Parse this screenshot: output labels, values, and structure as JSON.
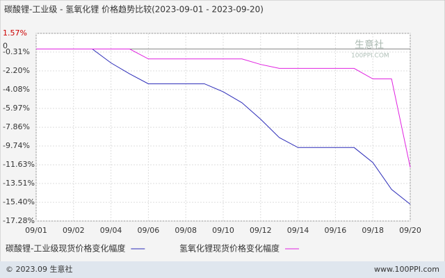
{
  "chart_data": {
    "type": "line",
    "title": "碳酸锂-工业级 - 氢氧化锂 价格趋势比较(2023-09-01 - 2023-09-20)",
    "categories": [
      "09/01",
      null,
      "09/02",
      null,
      "09/04",
      null,
      "09/06",
      null,
      "09/08",
      null,
      "09/10",
      null,
      "09/12",
      null,
      "09/14",
      null,
      "09/16",
      null,
      "09/18",
      null,
      "09/20"
    ],
    "series": [
      {
        "name": "碳酸锂-工业级现货价格变化幅度",
        "color": "#2a2ab8",
        "values": [
          0,
          0,
          0,
          0,
          -1.4,
          -2.5,
          -3.5,
          -3.5,
          -3.5,
          -3.5,
          -4.3,
          -5.4,
          -7.05,
          -8.9,
          -9.9,
          -9.9,
          -9.9,
          -9.9,
          -11.4,
          -14.1,
          -15.6
        ]
      },
      {
        "name": "氢氧化锂现货价格变化幅度",
        "color": "#e020e0",
        "values": [
          0,
          0,
          0,
          0,
          0,
          0,
          -1.0,
          -1.0,
          -1.0,
          -1.0,
          -1.0,
          -1.0,
          -1.55,
          -1.95,
          -1.95,
          -1.95,
          -1.95,
          -1.95,
          -3.0,
          -3.0,
          -11.9
        ]
      }
    ],
    "ylim": [
      -17.28,
      1.57
    ],
    "yticks": [
      {
        "value": 1.57,
        "label": "1.57%"
      },
      0,
      {
        "value": -0.31,
        "label": "-0.31%"
      },
      {
        "value": -2.2,
        "label": "-2.20%"
      },
      {
        "value": -4.08,
        "label": "-4.08%"
      },
      {
        "value": -5.97,
        "label": "-5.97%"
      },
      {
        "value": -7.86,
        "label": "-7.86%"
      },
      {
        "value": -9.74,
        "label": "-9.74%"
      },
      {
        "value": -11.63,
        "label": "-11.63%"
      },
      {
        "value": -13.51,
        "label": "-13.51%"
      },
      {
        "value": -15.4,
        "label": "-15.40%"
      },
      {
        "value": -17.28,
        "label": "-17.28%"
      }
    ],
    "grid": true,
    "watermark": [
      "生意社",
      "100PPI.COM"
    ],
    "footer": {
      "left": "© 2023.09 生意社",
      "right": "www.100PPI.com"
    }
  }
}
